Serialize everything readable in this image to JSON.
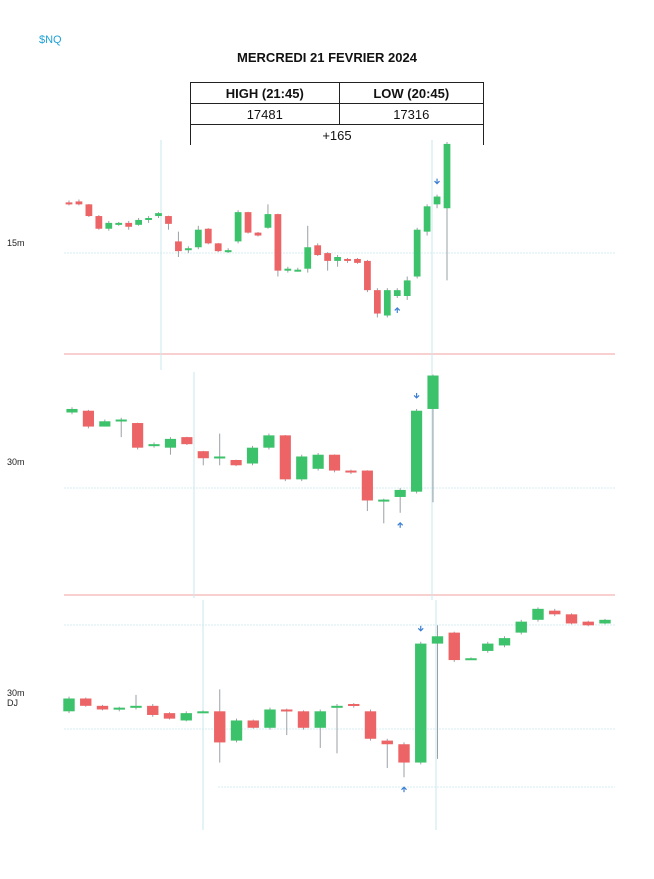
{
  "header": {
    "ticker": "$NQ",
    "title": "MERCREDI 21 FEVRIER 2024"
  },
  "stats": {
    "high_label": "HIGH (21:45)",
    "low_label": "LOW (20:45)",
    "high_value": "17481",
    "low_value": "17316",
    "change": "+165"
  },
  "colors": {
    "up": "#3cc26a",
    "down": "#ec6466",
    "arrow": "#3b7fd4",
    "separator": "#f3a1a1",
    "vline": "#c9e9ee",
    "gridline": "#c9e9ee"
  },
  "chart_data": [
    {
      "type": "candlestick",
      "panel_label": "15m",
      "candles": [
        [
          0.68,
          0.675,
          0.69,
          0.665
        ],
        [
          0.685,
          0.67,
          0.695,
          0.665
        ],
        [
          0.67,
          0.61,
          0.672,
          0.605
        ],
        [
          0.61,
          0.545,
          0.615,
          0.54
        ],
        [
          0.545,
          0.575,
          0.585,
          0.535
        ],
        [
          0.57,
          0.575,
          0.58,
          0.56
        ],
        [
          0.575,
          0.555,
          0.585,
          0.54
        ],
        [
          0.565,
          0.59,
          0.6,
          0.56
        ],
        [
          0.59,
          0.6,
          0.61,
          0.575
        ],
        [
          0.61,
          0.625,
          0.63,
          0.6
        ],
        [
          0.61,
          0.57,
          0.612,
          0.54
        ],
        [
          0.48,
          0.43,
          0.53,
          0.4
        ],
        [
          0.435,
          0.445,
          0.455,
          0.42
        ],
        [
          0.45,
          0.54,
          0.56,
          0.44
        ],
        [
          0.545,
          0.47,
          0.548,
          0.465
        ],
        [
          0.47,
          0.43,
          0.472,
          0.425
        ],
        [
          0.43,
          0.435,
          0.445,
          0.42
        ],
        [
          0.48,
          0.63,
          0.64,
          0.47
        ],
        [
          0.63,
          0.525,
          0.632,
          0.52
        ],
        [
          0.525,
          0.51,
          0.528,
          0.505
        ],
        [
          0.55,
          0.62,
          0.67,
          0.545
        ],
        [
          0.62,
          0.33,
          0.622,
          0.3
        ],
        [
          0.33,
          0.34,
          0.35,
          0.32
        ],
        [
          0.33,
          0.335,
          0.345,
          0.325
        ],
        [
          0.34,
          0.45,
          0.56,
          0.32
        ],
        [
          0.46,
          0.41,
          0.47,
          0.405
        ],
        [
          0.42,
          0.38,
          0.425,
          0.33
        ],
        [
          0.38,
          0.4,
          0.41,
          0.35
        ],
        [
          0.39,
          0.38,
          0.395,
          0.37
        ],
        [
          0.39,
          0.37,
          0.395,
          0.365
        ],
        [
          0.38,
          0.23,
          0.385,
          0.22
        ],
        [
          0.23,
          0.11,
          0.24,
          0.09
        ],
        [
          0.1,
          0.23,
          0.24,
          0.09
        ],
        [
          0.2,
          0.23,
          0.24,
          0.19
        ],
        [
          0.2,
          0.28,
          0.3,
          0.18
        ],
        [
          0.3,
          0.54,
          0.55,
          0.29
        ],
        [
          0.53,
          0.66,
          0.67,
          0.51
        ],
        [
          0.67,
          0.71,
          0.72,
          0.65
        ],
        [
          0.65,
          0.98,
          0.99,
          0.28
        ]
      ],
      "up_arrows": [
        33
      ],
      "down_arrows": [
        37
      ]
    },
    {
      "type": "candlestick",
      "panel_label": "30m",
      "candles": [
        [
          0.77,
          0.79,
          0.8,
          0.76
        ],
        [
          0.78,
          0.69,
          0.785,
          0.68
        ],
        [
          0.69,
          0.72,
          0.73,
          0.69
        ],
        [
          0.72,
          0.73,
          0.74,
          0.63
        ],
        [
          0.71,
          0.57,
          0.712,
          0.56
        ],
        [
          0.58,
          0.59,
          0.6,
          0.57
        ],
        [
          0.57,
          0.62,
          0.63,
          0.53
        ],
        [
          0.63,
          0.59,
          0.632,
          0.585
        ],
        [
          0.55,
          0.51,
          0.552,
          0.47
        ],
        [
          0.52,
          0.52,
          0.65,
          0.47
        ],
        [
          0.5,
          0.47,
          0.502,
          0.465
        ],
        [
          0.48,
          0.57,
          0.58,
          0.47
        ],
        [
          0.57,
          0.64,
          0.65,
          0.56
        ],
        [
          0.64,
          0.39,
          0.642,
          0.38
        ],
        [
          0.39,
          0.52,
          0.53,
          0.38
        ],
        [
          0.45,
          0.53,
          0.54,
          0.44
        ],
        [
          0.53,
          0.44,
          0.532,
          0.43
        ],
        [
          0.44,
          0.43,
          0.445,
          0.42
        ],
        [
          0.44,
          0.27,
          0.442,
          0.21
        ],
        [
          0.27,
          0.275,
          0.28,
          0.14
        ],
        [
          0.29,
          0.33,
          0.34,
          0.2
        ],
        [
          0.32,
          0.78,
          0.79,
          0.31
        ],
        [
          0.79,
          0.98,
          0.985,
          0.26
        ]
      ],
      "up_arrows": [
        20
      ],
      "down_arrows": [
        21
      ]
    },
    {
      "type": "candlestick",
      "panel_label": "30m DJ",
      "candles": [
        [
          0.43,
          0.5,
          0.51,
          0.42
        ],
        [
          0.5,
          0.46,
          0.505,
          0.455
        ],
        [
          0.46,
          0.44,
          0.465,
          0.435
        ],
        [
          0.44,
          0.45,
          0.455,
          0.43
        ],
        [
          0.45,
          0.46,
          0.52,
          0.44
        ],
        [
          0.46,
          0.41,
          0.47,
          0.4
        ],
        [
          0.42,
          0.39,
          0.425,
          0.385
        ],
        [
          0.38,
          0.42,
          0.43,
          0.375
        ],
        [
          0.43,
          0.43,
          0.435,
          0.425
        ],
        [
          0.43,
          0.26,
          0.55,
          0.15
        ],
        [
          0.27,
          0.38,
          0.39,
          0.26
        ],
        [
          0.38,
          0.34,
          0.385,
          0.335
        ],
        [
          0.34,
          0.44,
          0.45,
          0.33
        ],
        [
          0.44,
          0.43,
          0.445,
          0.3
        ],
        [
          0.43,
          0.34,
          0.435,
          0.33
        ],
        [
          0.34,
          0.43,
          0.44,
          0.23
        ],
        [
          0.46,
          0.46,
          0.47,
          0.2
        ],
        [
          0.47,
          0.46,
          0.475,
          0.45
        ],
        [
          0.43,
          0.28,
          0.44,
          0.27
        ],
        [
          0.27,
          0.25,
          0.28,
          0.12
        ],
        [
          0.25,
          0.15,
          0.26,
          0.07
        ],
        [
          0.15,
          0.8,
          0.81,
          0.14
        ],
        [
          0.8,
          0.84,
          0.9,
          0.17
        ],
        [
          0.86,
          0.71,
          0.865,
          0.7
        ],
        [
          0.72,
          0.72,
          0.725,
          0.715
        ],
        [
          0.76,
          0.8,
          0.81,
          0.75
        ],
        [
          0.79,
          0.83,
          0.84,
          0.78
        ],
        [
          0.86,
          0.92,
          0.93,
          0.85
        ],
        [
          0.93,
          0.99,
          0.998,
          0.92
        ],
        [
          0.98,
          0.96,
          0.99,
          0.95
        ],
        [
          0.96,
          0.91,
          0.965,
          0.905
        ],
        [
          0.92,
          0.9,
          0.925,
          0.895
        ],
        [
          0.91,
          0.93,
          0.935,
          0.905
        ]
      ],
      "up_arrows": [
        20
      ],
      "down_arrows": [
        21
      ]
    }
  ]
}
